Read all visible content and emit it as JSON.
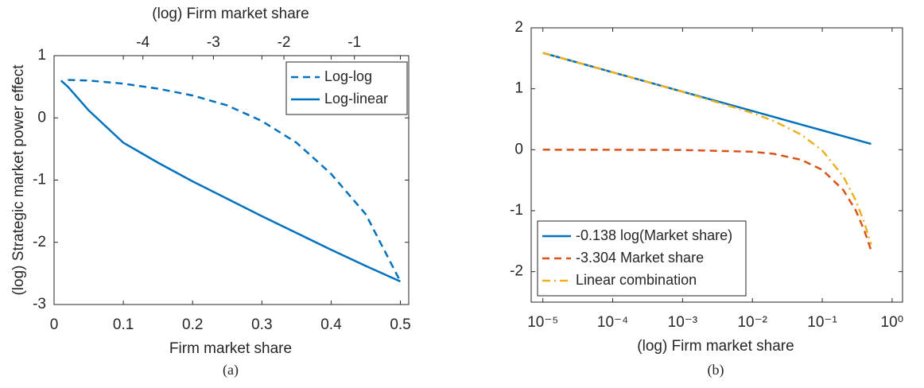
{
  "chart_data": [
    {
      "type": "line",
      "caption": "(a)",
      "xlabel": "Firm market share",
      "x2label": "(log) Firm market share",
      "ylabel": "(log) Strategic market power effect",
      "x": [
        0.01,
        0.02,
        0.05,
        0.1,
        0.15,
        0.2,
        0.25,
        0.3,
        0.35,
        0.4,
        0.45,
        0.5
      ],
      "series": [
        {
          "name": "Log-log",
          "color": "#0072bd",
          "linestyle": "dashed",
          "values": [
            null,
            0.61,
            0.6,
            0.55,
            0.47,
            0.36,
            0.2,
            -0.05,
            -0.4,
            -0.9,
            -1.55,
            -2.63
          ]
        },
        {
          "name": "Log-linear",
          "color": "#0072bd",
          "linestyle": "solid",
          "values": [
            0.6,
            0.5,
            0.12,
            -0.4,
            -0.72,
            -1.02,
            -1.3,
            -1.58,
            -1.85,
            -2.12,
            -2.38,
            -2.63
          ]
        }
      ],
      "xlim": [
        0,
        0.512
      ],
      "xticks": [
        0,
        0.1,
        0.2,
        0.3,
        0.4,
        0.5
      ],
      "x2lim": [
        -5.26,
        -0.23
      ],
      "x2ticks": [
        -4,
        -3,
        -2,
        -1
      ],
      "ylim": [
        -3,
        1
      ],
      "yticks": [
        -3,
        -2,
        -1,
        0,
        1
      ],
      "grid": false,
      "legend": "northeast"
    },
    {
      "type": "line",
      "caption": "(b)",
      "xlabel": "(log) Firm market share",
      "xscale": "log",
      "x": [
        1e-05,
        0.0001,
        0.001,
        0.01,
        0.02,
        0.05,
        0.1,
        0.2,
        0.3,
        0.4,
        0.5
      ],
      "series": [
        {
          "name": "-0.138 log(Market share)",
          "color": "#0072bd",
          "linestyle": "solid",
          "values": [
            1.589,
            1.271,
            0.953,
            0.636,
            0.54,
            0.413,
            0.318,
            0.222,
            0.166,
            0.126,
            0.096
          ]
        },
        {
          "name": "-3.304 Market share",
          "color": "#d95319",
          "linestyle": "dashed",
          "values": [
            0,
            -0.0003,
            -0.003,
            -0.033,
            -0.066,
            -0.165,
            -0.33,
            -0.661,
            -0.991,
            -1.322,
            -1.652
          ]
        },
        {
          "name": "Linear combination",
          "color": "#edb120",
          "linestyle": "dashdot",
          "values": [
            1.589,
            1.271,
            0.95,
            0.603,
            0.474,
            0.248,
            -0.012,
            -0.439,
            -0.825,
            -1.196,
            -1.556
          ]
        }
      ],
      "xlim": [
        6.8e-06,
        1.41
      ],
      "xticks": [
        {
          "value": 1e-05,
          "label": "10⁻⁵"
        },
        {
          "value": 0.0001,
          "label": "10⁻⁴"
        },
        {
          "value": 0.001,
          "label": "10⁻³"
        },
        {
          "value": 0.01,
          "label": "10⁻²"
        },
        {
          "value": 0.1,
          "label": "10⁻¹"
        },
        {
          "value": 1,
          "label": "10⁰"
        }
      ],
      "ylim": [
        -2.5,
        2
      ],
      "yticks": [
        -2,
        -1,
        0,
        1,
        2
      ],
      "grid": false,
      "legend": "southwest"
    }
  ]
}
